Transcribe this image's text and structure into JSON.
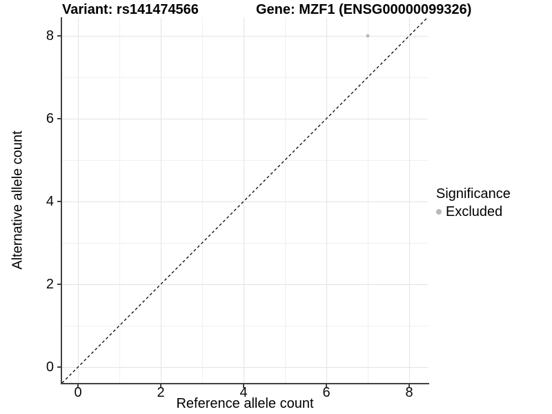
{
  "chart_data": {
    "type": "scatter",
    "title_left": "Variant: rs141474566",
    "title_right": "Gene: MZF1 (ENSG00000099326)",
    "xlabel": "Reference allele count",
    "ylabel": "Alternative allele count",
    "x_ticks": [
      0,
      2,
      4,
      6,
      8
    ],
    "y_ticks": [
      0,
      2,
      4,
      6,
      8
    ],
    "minor_breaks": [
      1,
      3,
      5,
      7
    ],
    "xlim": [
      -0.4,
      8.45
    ],
    "ylim": [
      -0.4,
      8.45
    ],
    "grid": true,
    "points": [
      {
        "x": 7,
        "y": 8,
        "significance": "Excluded"
      }
    ],
    "identity_line": {
      "style": "dashed",
      "slope": 1,
      "intercept": 0,
      "color": "#000000"
    },
    "legend": {
      "position": "right",
      "title": "Significance",
      "items": [
        {
          "label": "Excluded",
          "color": "#b8b8b8"
        }
      ]
    },
    "colors": {
      "excluded_point": "#b8b8b8",
      "grid_major": "#e3e3e3",
      "grid_minor": "#f0f0f0",
      "axis_line": "#404040",
      "text": "#000000",
      "background": "#ffffff"
    }
  }
}
